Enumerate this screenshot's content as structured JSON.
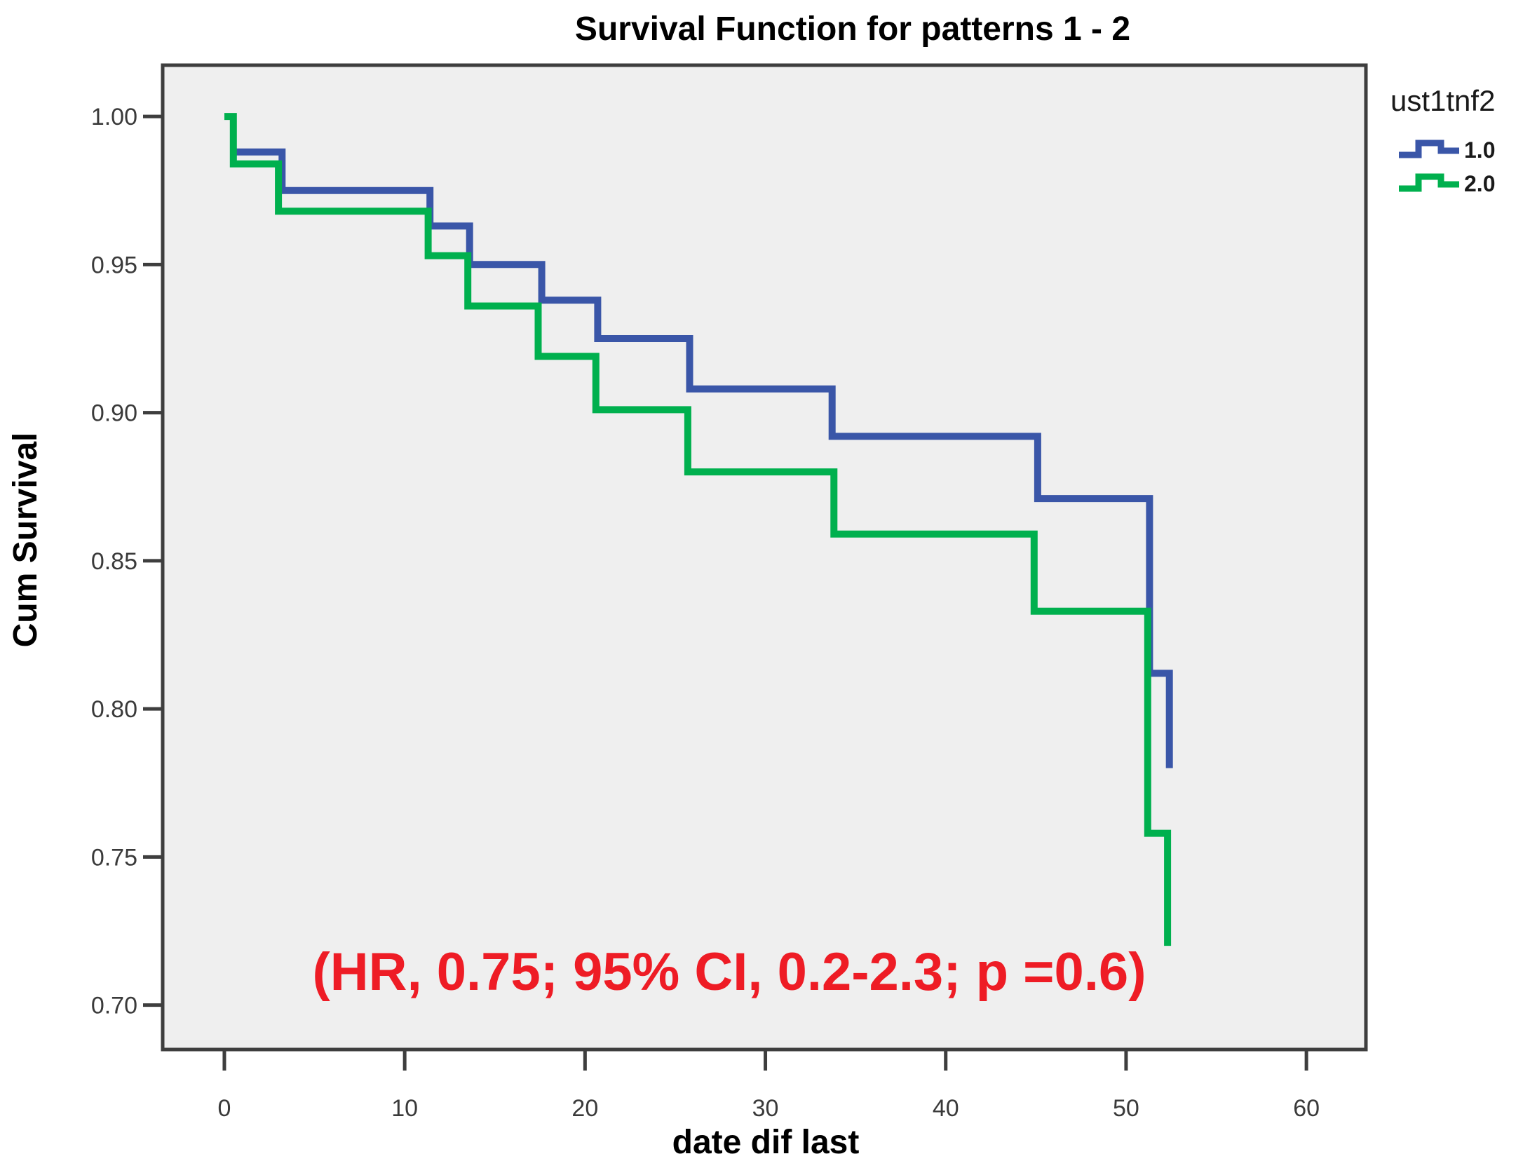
{
  "chart_data": {
    "type": "line",
    "subtype": "kaplan-meier-step-survival",
    "title": "Survival Function for patterns 1 - 2",
    "xlabel": "date dif last",
    "ylabel": "Cum Survival",
    "annotation": {
      "text": "(HR, 0.75; 95% CI, 0.2-2.3; p =0.6)",
      "color": "#ee1c25"
    },
    "legend": {
      "title": "ust1tnf2",
      "position": "top-right-outside"
    },
    "x_ticks": [
      "0",
      "10",
      "20",
      "30",
      "40",
      "50",
      "60"
    ],
    "y_ticks": [
      "1.00",
      "0.95",
      "0.90",
      "0.85",
      "0.80",
      "0.75",
      "0.70"
    ],
    "xlim": [
      -3.42,
      63.3
    ],
    "ylim": [
      0.685,
      1.0173
    ],
    "grid": false,
    "plot_background": "#efefef",
    "axis_color": "#3e3e3e",
    "series": [
      {
        "name": "1.0",
        "color": "#3a56a8",
        "points": [
          [
            0.6,
            0.988
          ],
          [
            3.2,
            0.988
          ],
          [
            3.2,
            0.975
          ],
          [
            11.4,
            0.975
          ],
          [
            11.4,
            0.963
          ],
          [
            13.6,
            0.963
          ],
          [
            13.6,
            0.95
          ],
          [
            17.6,
            0.95
          ],
          [
            17.6,
            0.938
          ],
          [
            20.7,
            0.938
          ],
          [
            20.7,
            0.925
          ],
          [
            25.8,
            0.925
          ],
          [
            25.8,
            0.908
          ],
          [
            33.7,
            0.908
          ],
          [
            33.7,
            0.892
          ],
          [
            45.1,
            0.892
          ],
          [
            45.1,
            0.871
          ],
          [
            51.3,
            0.871
          ],
          [
            51.3,
            0.812
          ],
          [
            52.4,
            0.812
          ],
          [
            52.4,
            0.78
          ]
        ]
      },
      {
        "name": "2.0",
        "color": "#00b04e",
        "points": [
          [
            0.0,
            1.0
          ],
          [
            0.5,
            1.0
          ],
          [
            0.5,
            0.984
          ],
          [
            3.0,
            0.984
          ],
          [
            3.0,
            0.968
          ],
          [
            11.3,
            0.968
          ],
          [
            11.3,
            0.953
          ],
          [
            13.5,
            0.953
          ],
          [
            13.5,
            0.936
          ],
          [
            17.4,
            0.936
          ],
          [
            17.4,
            0.919
          ],
          [
            20.6,
            0.919
          ],
          [
            20.6,
            0.901
          ],
          [
            25.7,
            0.901
          ],
          [
            25.7,
            0.88
          ],
          [
            33.8,
            0.88
          ],
          [
            33.8,
            0.859
          ],
          [
            44.9,
            0.859
          ],
          [
            44.9,
            0.833
          ],
          [
            51.2,
            0.833
          ],
          [
            51.2,
            0.758
          ],
          [
            52.3,
            0.758
          ],
          [
            52.3,
            0.72
          ]
        ]
      }
    ]
  }
}
